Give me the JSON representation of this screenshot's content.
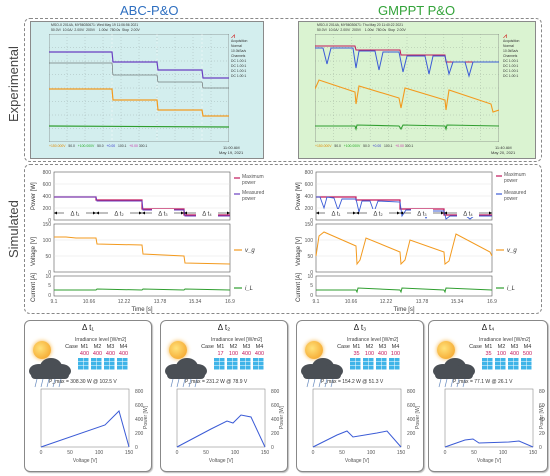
{
  "titles": {
    "left": "ABC-P&O",
    "right": "GMPPT P&O"
  },
  "row_labels": {
    "experimental": "Experimental",
    "simulated": "Simulated"
  },
  "colors": {
    "abc_title": "#2e6fc0",
    "gmppt_title": "#33a33a",
    "scope_bg_left": "#d3eeee",
    "scope_bg_right": "#daf3d1",
    "power_max": "#c2185b",
    "power_meas": "#6a3fc2",
    "voltage": "#f39a1e",
    "current": "#2f9e2f"
  },
  "scope_left": {
    "header": "MSO-X 2014A, MY56030671: Wed May 19 11:06:56 2021",
    "top_readout": [
      "50.0V/",
      "10.0A/",
      "2.00V/",
      "200V/",
      "1.00s/",
      "780.0s",
      "Stop",
      "2.00V"
    ],
    "side_labels": [
      "Acquisition",
      "Normal",
      "10.0kSa/s",
      "Channels",
      "DC",
      "DC",
      "DC"
    ],
    "side_values": [
      "1.00:1",
      "1.00:1",
      "1.00:1",
      "1.00:1"
    ],
    "bottom_readout": [
      "+150.000V",
      "+100.000V",
      "+0.00",
      "+0.00"
    ],
    "bottom_values": [
      "50.0",
      "50.0",
      "100.1",
      "300.1"
    ],
    "time": "11:00 AM",
    "date": "May 19, 2021"
  },
  "scope_right": {
    "header": "MSO-X 2014A, MY56030671: Thu May 20 11:40:22 2021",
    "top_readout": [
      "50.0V/",
      "10.0A/",
      "2.00V/",
      "200V/",
      "1.00s/",
      "780.0s",
      "Stop",
      "2.00V"
    ],
    "side_labels": [
      "Acquisition",
      "Normal",
      "10.0kSa/s",
      "Channels",
      "DC",
      "DC",
      "DC"
    ],
    "side_values": [
      "1.00:1",
      "1.00:1",
      "1.00:1",
      "1.00:1"
    ],
    "bottom_readout": [
      "+150.000V",
      "+100.000V",
      "+0.00",
      "+0.00"
    ],
    "bottom_values": [
      "50.0",
      "50.0",
      "100.1",
      "300.1"
    ],
    "time": "11:40 AM",
    "date": "May 20, 2021"
  },
  "sim": {
    "power_ylabel": "Power [W]",
    "voltage_ylabel": "Voltage [V]",
    "current_ylabel": "Current [A]",
    "power_ticks": [
      "800",
      "600",
      "400",
      "200",
      "0"
    ],
    "voltage_ticks": [
      "150",
      "100",
      "50",
      "0"
    ],
    "current_ticks": [
      "10",
      "5",
      "0"
    ],
    "xlabel": "Time [s]",
    "xticks": [
      "9.1",
      "10.66",
      "12.22",
      "13.78",
      "15.34",
      "16.9"
    ],
    "legend_max": "Maximum power",
    "legend_meas": "Measured power",
    "legend_max_lines": [
      "Maximum",
      "power"
    ],
    "legend_meas_lines": [
      "Measured",
      "power"
    ],
    "vg_label": "v_g",
    "il_label": "i_L",
    "intervals": [
      "Δ t₁",
      "Δ t₂",
      "Δ t₃",
      "Δ t₄"
    ]
  },
  "cards": [
    {
      "title": "Δ t₁",
      "irr_title": "Irradiance level [W/m2]",
      "cases": [
        "Case",
        "M1",
        "M2",
        "M3",
        "M4"
      ],
      "levels": [
        "",
        "400",
        "400",
        "400",
        "400"
      ],
      "pmax_label": "P_max",
      "pmax_value": "= 308.30 W @ 102.5 V",
      "pv_ticks": [
        "800",
        "600",
        "400",
        "200",
        "0"
      ],
      "v_ticks": [
        "0",
        "50",
        "100",
        "150"
      ],
      "pv_ylabel": "Power [W]",
      "pv_xlabel": "Voltage [V]"
    },
    {
      "title": "Δ t₂",
      "irr_title": "Irradiance level [W/m2]",
      "cases": [
        "Case",
        "M1",
        "M2",
        "M3",
        "M4"
      ],
      "levels": [
        "",
        "17",
        "100",
        "400",
        "400"
      ],
      "pmax_label": "P_max",
      "pmax_value": "= 231.2 W @ 78.9 V",
      "pv_ticks": [
        "800",
        "600",
        "400",
        "200",
        "0"
      ],
      "v_ticks": [
        "0",
        "50",
        "100",
        "150"
      ],
      "pv_ylabel": "Power [W]",
      "pv_xlabel": "Voltage [V]"
    },
    {
      "title": "Δ t₃",
      "irr_title": "Irradiance level [W/m2]",
      "cases": [
        "Case",
        "M1",
        "M2",
        "M3",
        "M4"
      ],
      "levels": [
        "",
        "35",
        "100",
        "400",
        "100"
      ],
      "pmax_label": "P_max",
      "pmax_value": "= 154.2 W @ 51.3 V",
      "pv_ticks": [
        "800",
        "600",
        "400",
        "200",
        "0"
      ],
      "v_ticks": [
        "0",
        "50",
        "100",
        "150"
      ],
      "pv_ylabel": "Power [W]",
      "pv_xlabel": "Voltage [V]"
    },
    {
      "title": "Δ t₄",
      "irr_title": "Irradiance level [W/m2]",
      "cases": [
        "Case",
        "M1",
        "M2",
        "M3",
        "M4"
      ],
      "levels": [
        "",
        "35",
        "100",
        "400",
        "500"
      ],
      "pmax_label": "P_max",
      "pmax_value": "= 77.1 W @ 26.1 V",
      "pv_ticks": [
        "800",
        "600",
        "400",
        "200",
        "0"
      ],
      "v_ticks": [
        "0",
        "50",
        "100",
        "150"
      ],
      "pv_ylabel": "Power [W]",
      "pv_xlabel": "Voltage [V]"
    }
  ]
}
